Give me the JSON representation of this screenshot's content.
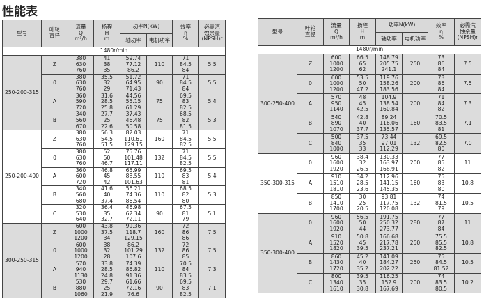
{
  "title": "性能表",
  "headers": {
    "model": "型号",
    "impeller": "叶轮\n直径",
    "flow": "流量\nQ\nm³/h",
    "head": "扬程\nH\nm",
    "power": "功率N(kW)",
    "shaft": "轴功率",
    "motor": "电机功率",
    "eff": "效率\nη\n%",
    "npsh": "必需汽\n蚀余量\n(NPSH)r"
  },
  "speed": "1480r/min",
  "colors": {
    "shade": "#dcdcdc",
    "border": "#444444"
  },
  "left": [
    {
      "model": "250-200-315",
      "shade": true,
      "rows": [
        {
          "d": "Z",
          "q": "380\n630\n760",
          "h": "41\n38\n35",
          "n": "59.74\n77.12\n86.2",
          "m": "110",
          "e": "71\n84.5\n84",
          "s": "5.5"
        },
        {
          "d": "0",
          "q": "380\n630\n760",
          "h": "35.5\n32\n29",
          "n": "51.72\n64.95\n71.43",
          "m": "90",
          "e": "71\n84.5\n84",
          "s": "5.5"
        },
        {
          "d": "A",
          "q": "360\n590\n720",
          "h": "31.6\n28.5\n25.8",
          "n": "44.56\n55.15\n61.29",
          "m": "75",
          "e": "69.5\n83\n82.5",
          "s": "5.4"
        },
        {
          "d": "B",
          "q": "340\n560\n670",
          "h": "27.7\n25\n22.6",
          "n": "37.43\n46.48\n50.58",
          "m": "75",
          "e": "68.5\n82\n81.5",
          "s": "5.3"
        }
      ]
    },
    {
      "model": "250-200-400",
      "shade": false,
      "rows": [
        {
          "d": "Z",
          "q": "380\n630\n760",
          "h": "56.3\n54.5\n51.5",
          "n": "82.03\n110.61\n129.15",
          "m": "160",
          "e": "71\n84.5\n82.5",
          "s": "5.5"
        },
        {
          "d": "0",
          "q": "380\n630\n760",
          "h": "52\n50\n46.7",
          "n": "75.76\n101.48\n117.11",
          "m": "132",
          "e": "71\n84.5\n82.5",
          "s": "5.5"
        },
        {
          "d": "A",
          "q": "360\n600\n720",
          "h": "46.8\n45\n42",
          "n": "65.99\n88.55\n101.63",
          "m": "110",
          "e": "69.5\n83\n81",
          "s": "5.4"
        },
        {
          "d": "B",
          "q": "340\n560\n680",
          "h": "41.6\n40\n37.4",
          "n": "56.21\n74.36\n86.54",
          "m": "110",
          "e": "68.5\n82\n80",
          "s": "5.3"
        },
        {
          "d": "C",
          "q": "320\n530\n640",
          "h": "36.4\n35\n32.7",
          "n": "46.98\n62.34\n72.11",
          "m": "90",
          "e": "67.5\n81\n79",
          "s": "5.1"
        }
      ]
    },
    {
      "model": "300-250-315",
      "shade": true,
      "rows": [
        {
          "d": "Z",
          "q": "600\n1000\n1200",
          "h": "43.8\n37.5\n34",
          "n": "99.36\n118.7\n129.15",
          "m": "160",
          "e": "72\n86\n86",
          "s": "7.5"
        },
        {
          "d": "0",
          "q": "600\n1000\n1200",
          "h": "38\n32\n28",
          "n": "86.2\n101.29\n107.6",
          "m": "132",
          "e": "72\n86\n85",
          "s": "7.5"
        },
        {
          "d": "A",
          "q": "570\n940\n1130",
          "h": "33.8\n28.5\n24.8",
          "n": "74.39\n86.82\n91.36",
          "m": "110",
          "e": "70.5\n84\n83.5",
          "s": "7.3"
        },
        {
          "d": "B",
          "q": "530\n880\n1060",
          "h": "29.7\n25\n21.9",
          "n": "61.66\n72.16\n76.6",
          "m": "90",
          "e": "69.5\n83\n82.5",
          "s": "7.1"
        }
      ]
    }
  ],
  "right": [
    {
      "model": "300-250-400",
      "shade": true,
      "rows": [
        {
          "d": "Z",
          "q": "600\n1000\n1200",
          "h": "66.5\n65\n62",
          "n": "148.79\n205.75\n241.1",
          "m": "250",
          "e": "73\n86\n84",
          "s": "7.5"
        },
        {
          "d": "0",
          "q": "600\n1000\n1200",
          "h": "53.5\n50\n47.2",
          "n": "119.76\n158.26\n183.56",
          "m": "200",
          "e": "73\n86\n84",
          "s": "7.5"
        },
        {
          "d": "A",
          "q": "570\n950\n1140",
          "h": "48\n45\n42.5",
          "n": "104.9\n138.54\n160.84",
          "m": "200",
          "e": "71\n84\n82",
          "s": "7.3"
        },
        {
          "d": "B",
          "q": "540\n890\n1070",
          "h": "42.8\n40\n37.7",
          "n": "89.24\n116.06\n135.57",
          "m": "160",
          "e": "70.5\n83.5\n81",
          "s": "7.1"
        },
        {
          "d": "C",
          "q": "500\n840\n1000",
          "h": "37.5\n35\n33",
          "n": "73.44\n97.01\n112.29",
          "m": "132",
          "e": "69.5\n82.5\n80",
          "s": "7.0"
        }
      ]
    },
    {
      "model": "350-300-315",
      "shade": false,
      "rows": [
        {
          "d": "0",
          "q": "960\n1600\n1920",
          "h": "38.4\n32\n26.5",
          "n": "130.33\n163.97\n168.91",
          "m": "200",
          "e": "77\n85\n82",
          "s": "11"
        },
        {
          "d": "A",
          "q": "910\n1510\n1810",
          "h": "34.2\n28.5\n23.6",
          "n": "112.96\n141.15\n145.35",
          "m": "160",
          "e": "75\n83\n80",
          "s": "10.8"
        },
        {
          "d": "B",
          "q": "850\n1410\n1700",
          "h": "30\n25\n20.5",
          "n": "93.81\n117.75\n120.08",
          "m": "132",
          "e": "74\n81.5\n79",
          "s": "10.5"
        }
      ]
    },
    {
      "model": "350-300-400",
      "shade": true,
      "rows": [
        {
          "d": "0",
          "q": "960\n1600\n1920",
          "h": "56.5\n50\n44",
          "n": "191.75\n250.32\n273.77",
          "m": "280",
          "e": "77\n87\n84",
          "s": "11"
        },
        {
          "d": "A",
          "q": "910\n1520\n1820",
          "h": "50.8\n45\n39.5",
          "n": "166.68\n217.78\n237.21",
          "m": "250",
          "e": "75.5\n85.5\n82.5",
          "s": "10.8"
        },
        {
          "d": "B",
          "q": "860\n1430\n1720",
          "h": "45.2\n40\n35.2",
          "n": "141.09\n184.27\n202.22",
          "m": "250",
          "e": "75\n84.5\n81.52",
          "s": "10.5"
        },
        {
          "d": "C",
          "q": "800\n1340\n1610",
          "h": "39.5\n35\n30.8",
          "n": "116.25\n152.9\n167.69",
          "m": "200",
          "e": "74\n83.5\n80.5",
          "s": "10.2"
        }
      ]
    }
  ]
}
